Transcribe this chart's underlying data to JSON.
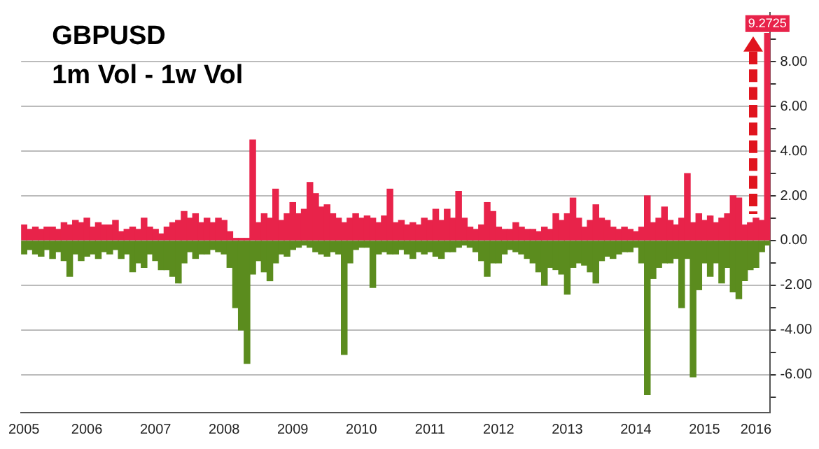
{
  "chart_data": {
    "type": "bar",
    "title": "GBPUSD",
    "subtitle": "1m Vol - 1w Vol",
    "stacked": true,
    "grid": "y",
    "legend": false,
    "categories": [
      "2005",
      null,
      null,
      null,
      null,
      null,
      null,
      null,
      null,
      null,
      null,
      "2006",
      null,
      null,
      null,
      null,
      null,
      null,
      null,
      null,
      null,
      null,
      null,
      "2007",
      null,
      null,
      null,
      null,
      null,
      null,
      null,
      null,
      null,
      null,
      null,
      "2008",
      null,
      null,
      null,
      null,
      null,
      null,
      null,
      null,
      null,
      null,
      null,
      "2009",
      null,
      null,
      null,
      null,
      null,
      null,
      null,
      null,
      null,
      null,
      null,
      "2010",
      null,
      null,
      null,
      null,
      null,
      null,
      null,
      null,
      null,
      null,
      null,
      "2011",
      null,
      null,
      null,
      null,
      null,
      null,
      null,
      null,
      null,
      null,
      null,
      "2012",
      null,
      null,
      null,
      null,
      null,
      null,
      null,
      null,
      null,
      null,
      null,
      "2013",
      null,
      null,
      null,
      null,
      null,
      null,
      null,
      null,
      null,
      null,
      null,
      "2014",
      null,
      null,
      null,
      null,
      null,
      null,
      null,
      null,
      null,
      null,
      null,
      "2015",
      null,
      null,
      null,
      null,
      null,
      null,
      null,
      null,
      "2016",
      null,
      null
    ],
    "ylim": [
      -7.7,
      10.2
    ],
    "yticks": [
      {
        "value": -7,
        "label": null
      },
      {
        "value": -6,
        "label": "-6.00"
      },
      {
        "value": -5,
        "label": null
      },
      {
        "value": -4,
        "label": "-4.00"
      },
      {
        "value": -3,
        "label": null
      },
      {
        "value": -2,
        "label": "-2.00"
      },
      {
        "value": -1,
        "label": null
      },
      {
        "value": 0,
        "label": "0.00"
      },
      {
        "value": 1,
        "label": null
      },
      {
        "value": 2,
        "label": "2.00"
      },
      {
        "value": 3,
        "label": null
      },
      {
        "value": 4,
        "label": "4.00"
      },
      {
        "value": 5,
        "label": null
      },
      {
        "value": 6,
        "label": "6.00"
      },
      {
        "value": 7,
        "label": null
      },
      {
        "value": 8,
        "label": "8.00"
      },
      {
        "value": 9,
        "label": null
      }
    ],
    "series": [
      {
        "color": "#e8234a",
        "values": [
          0.7,
          0.5,
          0.6,
          0.5,
          0.6,
          0.6,
          0.5,
          0.8,
          0.7,
          0.9,
          0.8,
          1.0,
          0.6,
          0.8,
          0.7,
          0.7,
          0.9,
          0.4,
          0.5,
          0.6,
          0.5,
          1.0,
          0.6,
          0.5,
          0.3,
          0.6,
          0.8,
          0.9,
          1.3,
          1.0,
          1.2,
          0.8,
          1.0,
          0.8,
          1.0,
          0.9,
          0.4,
          0.1,
          0.1,
          0.1,
          4.5,
          0.8,
          1.2,
          1.0,
          2.3,
          0.9,
          1.2,
          1.7,
          1.2,
          1.4,
          2.6,
          2.1,
          1.5,
          1.6,
          1.2,
          1.0,
          0.8,
          1.0,
          1.2,
          1.0,
          1.1,
          1.0,
          0.8,
          1.1,
          2.3,
          0.8,
          0.9,
          0.7,
          0.8,
          0.7,
          1.0,
          0.9,
          1.4,
          0.9,
          1.4,
          1.0,
          2.2,
          1.0,
          0.6,
          0.5,
          0.7,
          1.7,
          1.3,
          0.6,
          0.5,
          0.5,
          0.8,
          0.6,
          0.5,
          0.5,
          0.4,
          0.6,
          0.5,
          1.2,
          0.9,
          1.2,
          1.9,
          1.0,
          0.6,
          0.9,
          1.6,
          1.0,
          0.9,
          0.6,
          0.5,
          0.6,
          0.5,
          0.4,
          0.6,
          2.0,
          0.8,
          1.0,
          1.5,
          0.9,
          0.7,
          1.0,
          3.0,
          0.8,
          1.2,
          0.9,
          1.1,
          0.8,
          1.0,
          1.2,
          2.0,
          1.9,
          0.7,
          0.8,
          1.0,
          0.9,
          9.2725
        ],
        "value_labels": [
          null,
          null,
          null,
          null,
          null,
          null,
          null,
          null,
          null,
          null,
          null,
          null,
          null,
          null,
          null,
          null,
          null,
          null,
          null,
          null,
          null,
          null,
          null,
          null,
          null,
          null,
          null,
          null,
          null,
          null,
          null,
          null,
          null,
          null,
          null,
          null,
          null,
          null,
          null,
          null,
          null,
          null,
          null,
          null,
          null,
          null,
          null,
          null,
          null,
          null,
          null,
          null,
          null,
          null,
          null,
          null,
          null,
          null,
          null,
          null,
          null,
          null,
          null,
          null,
          null,
          null,
          null,
          null,
          null,
          null,
          null,
          null,
          null,
          null,
          null,
          null,
          null,
          null,
          null,
          null,
          null,
          null,
          null,
          null,
          null,
          null,
          null,
          null,
          null,
          null,
          null,
          null,
          null,
          null,
          null,
          null,
          null,
          null,
          null,
          null,
          null,
          null,
          null,
          null,
          null,
          null,
          null,
          null,
          null,
          null,
          null,
          null,
          null,
          null,
          null,
          null,
          null,
          null,
          null,
          null,
          null,
          null,
          null,
          null,
          null,
          null,
          null,
          null,
          null,
          null,
          "9.2725"
        ]
      },
      {
        "color": "#5b8c1e",
        "values": [
          -0.6,
          -0.4,
          -0.6,
          -0.7,
          -0.4,
          -0.8,
          -0.5,
          -0.9,
          -1.6,
          -0.6,
          -0.9,
          -0.7,
          -0.6,
          -0.8,
          -0.5,
          -0.6,
          -0.4,
          -0.8,
          -0.6,
          -1.4,
          -1.0,
          -1.2,
          -0.6,
          -0.9,
          -1.3,
          -1.3,
          -1.6,
          -1.9,
          -1.0,
          -0.5,
          -0.8,
          -0.6,
          -0.6,
          -0.4,
          -0.5,
          -0.6,
          -1.2,
          -3.0,
          -4.0,
          -5.5,
          -1.5,
          -0.9,
          -1.4,
          -1.8,
          -1.0,
          -0.6,
          -0.7,
          -0.4,
          -0.3,
          -0.2,
          -0.3,
          -0.5,
          -0.6,
          -0.7,
          -0.5,
          -0.6,
          -5.1,
          -1.0,
          -0.4,
          -0.3,
          -0.3,
          -2.1,
          -0.6,
          -0.5,
          -0.6,
          -0.6,
          -0.4,
          -0.6,
          -0.8,
          -0.5,
          -0.6,
          -0.5,
          -0.7,
          -0.8,
          -0.5,
          -0.5,
          -0.3,
          -0.2,
          -0.3,
          -0.5,
          -0.9,
          -1.6,
          -1.0,
          -1.0,
          -0.6,
          -0.4,
          -0.5,
          -0.6,
          -0.8,
          -1.0,
          -1.4,
          -2.0,
          -1.2,
          -1.3,
          -1.5,
          -2.4,
          -1.2,
          -1.0,
          -1.1,
          -1.4,
          -1.9,
          -0.9,
          -0.7,
          -0.8,
          -0.6,
          -0.5,
          -0.5,
          -0.3,
          -1.0,
          -6.9,
          -1.7,
          -1.2,
          -1.0,
          -1.0,
          -0.8,
          -3.0,
          -0.8,
          -6.1,
          -2.2,
          -1.0,
          -1.6,
          -1.0,
          -1.9,
          -1.2,
          -2.3,
          -2.6,
          -1.8,
          -1.3,
          -1.2,
          -0.5,
          -0.2
        ]
      }
    ]
  }
}
